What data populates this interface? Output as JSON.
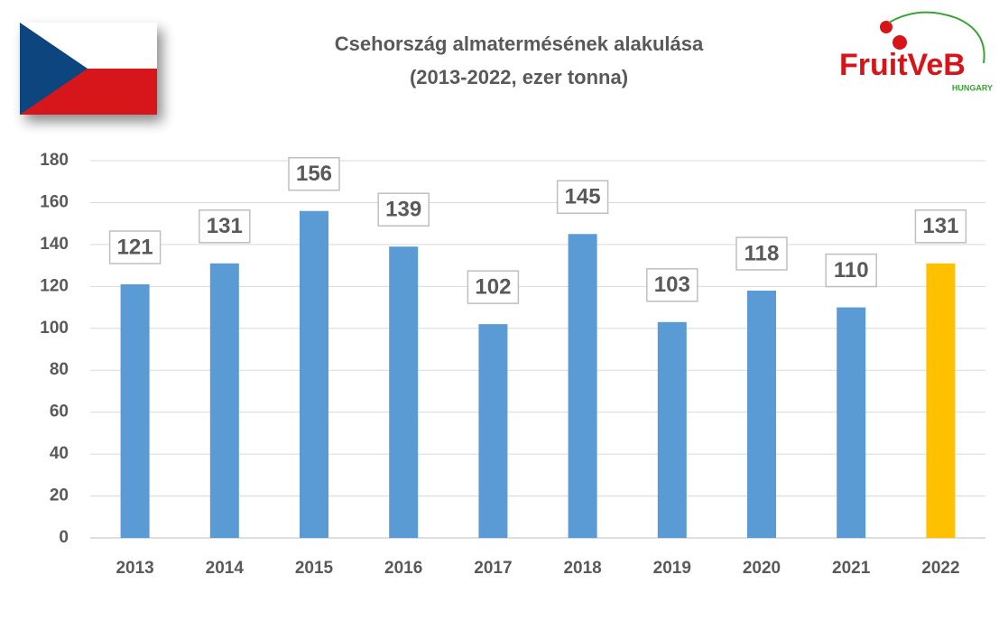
{
  "chart_data": {
    "type": "bar",
    "title": "Csehország almatermésének alakulása",
    "subtitle": "(2013-2022, ezer tonna)",
    "logo": {
      "text": "FruitVeB",
      "subtext": "HUNGARY"
    },
    "categories": [
      "2013",
      "2014",
      "2015",
      "2016",
      "2017",
      "2018",
      "2019",
      "2020",
      "2021",
      "2022"
    ],
    "values": [
      121,
      131,
      156,
      139,
      102,
      145,
      103,
      118,
      110,
      131
    ],
    "colors": [
      "#5b9bd5",
      "#5b9bd5",
      "#5b9bd5",
      "#5b9bd5",
      "#5b9bd5",
      "#5b9bd5",
      "#5b9bd5",
      "#5b9bd5",
      "#5b9bd5",
      "#ffc000"
    ],
    "ylim": [
      0,
      180
    ],
    "yticks": [
      0,
      20,
      40,
      60,
      80,
      100,
      120,
      140,
      160,
      180
    ],
    "grid": true
  }
}
